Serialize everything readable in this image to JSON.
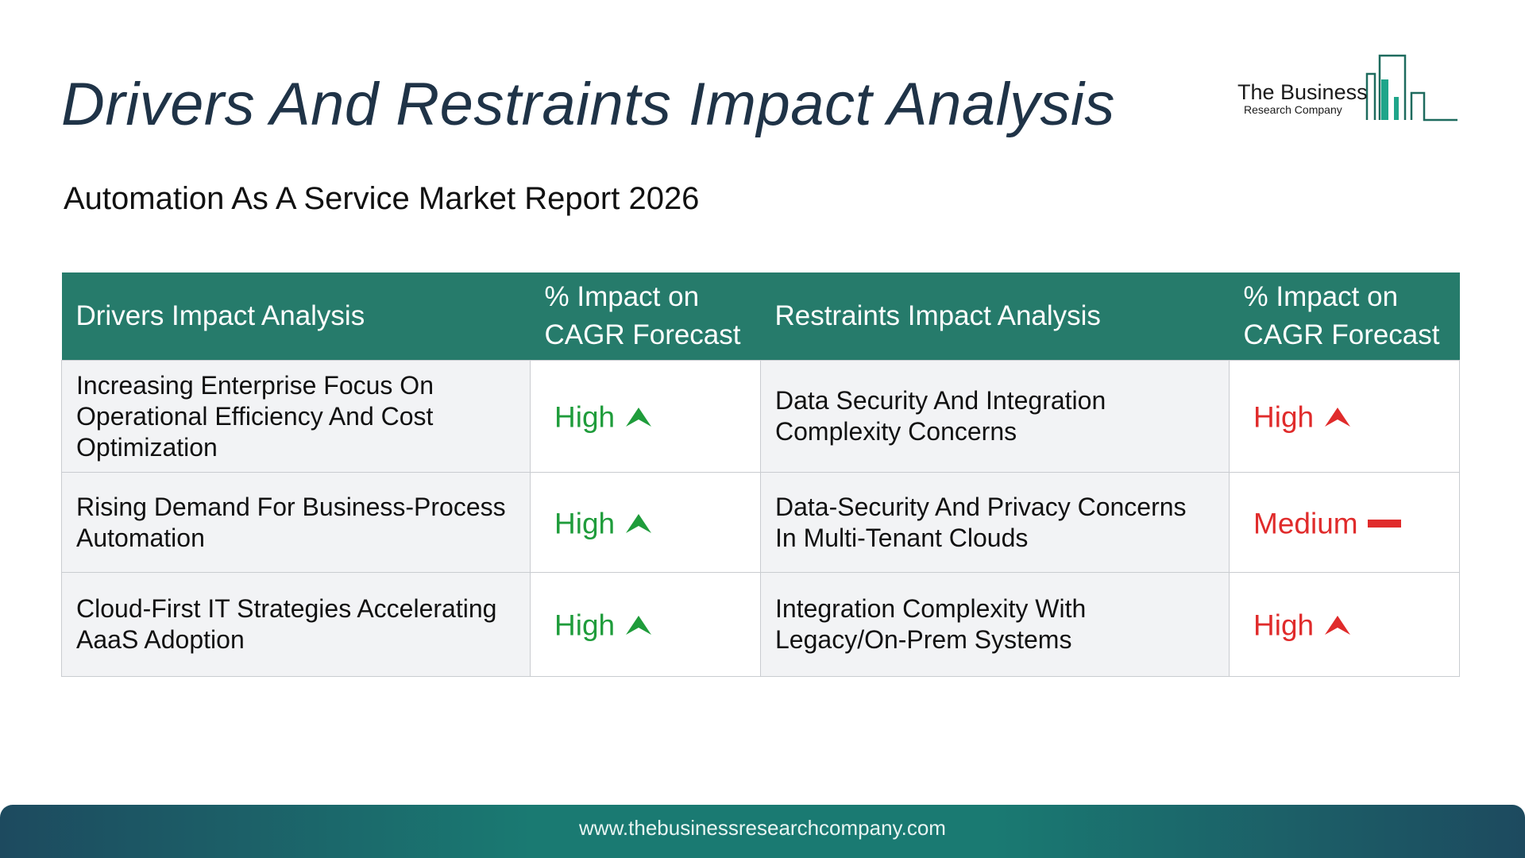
{
  "title": "Drivers And Restraints Impact Analysis",
  "subtitle": "Automation As A Service Market Report 2026",
  "logo": {
    "name": "The Business",
    "sub": "Research Company"
  },
  "table": {
    "headers": {
      "drivers": "Drivers Impact Analysis",
      "drivers_impact": "% Impact on CAGR Forecast",
      "restraints": "Restraints Impact Analysis",
      "restraints_impact": "% Impact on CAGR Forecast"
    },
    "rows": [
      {
        "driver": "Increasing Enterprise Focus On Operational Efficiency And Cost Optimization",
        "driver_impact": "High",
        "driver_icon": "arrow-up-icon",
        "restraint": "Data Security And Integration Complexity Concerns",
        "restraint_impact": "High",
        "restraint_icon": "arrow-up-icon"
      },
      {
        "driver": "Rising Demand For Business-Process Automation",
        "driver_impact": "High",
        "driver_icon": "arrow-up-icon",
        "restraint": "Data-Security And Privacy Concerns In Multi-Tenant Clouds",
        "restraint_impact": "Medium",
        "restraint_icon": "dash-icon"
      },
      {
        "driver": "Cloud-First IT Strategies Accelerating AaaS Adoption",
        "driver_impact": "High",
        "driver_icon": "arrow-up-icon",
        "restraint": "Integration Complexity With Legacy/On-Prem Systems",
        "restraint_impact": "High",
        "restraint_icon": "arrow-up-icon"
      }
    ]
  },
  "footer": {
    "url": "www.thebusinessresearchcompany.com"
  },
  "colors": {
    "header_bg": "#267b6b",
    "driver_impact": "#1f9c3b",
    "restraint_impact": "#e02b2b",
    "title": "#1f3347"
  }
}
